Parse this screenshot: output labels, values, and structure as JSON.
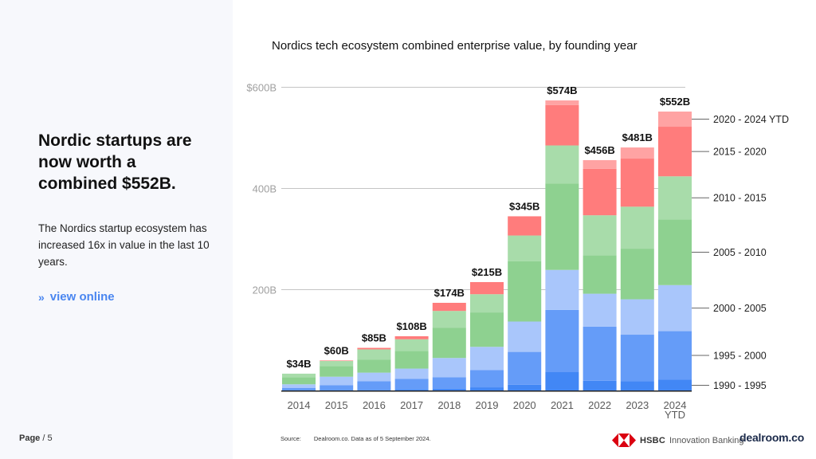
{
  "left_panel": {
    "headline": "Nordic startups are now worth a combined $552B.",
    "summary": "The Nordics startup ecosystem has increased 16x in value in the last 10 years.",
    "link_chevron": "»",
    "link_label": "view online"
  },
  "footer": {
    "page_label": "Page",
    "page_number": "/ 5",
    "source_label": "Source:",
    "source_text": "Dealroom.co. Data as of 5 September 2024.",
    "partner_brand": "HSBC",
    "partner_sub": "Innovation Banking",
    "logo_text": "dealroom.co"
  },
  "colors": {
    "background_left": "#f7f8fc",
    "link": "#4a86f0",
    "hsbc_red": "#db0011"
  },
  "chart_data": {
    "type": "bar",
    "stacked": true,
    "title": "Nordics tech ecosystem combined enterprise value, by founding year",
    "xlabel": "",
    "ylabel": "",
    "ylim": [
      0,
      600
    ],
    "grid": true,
    "legend_position": "right",
    "categories": [
      "2014",
      "2015",
      "2016",
      "2017",
      "2018",
      "2019",
      "2020",
      "2021",
      "2022",
      "2023",
      "2024 YTD"
    ],
    "y_ticks": [
      {
        "value": 200,
        "label": "200B"
      },
      {
        "value": 400,
        "label": "400B"
      },
      {
        "value": 600,
        "label": "$600B"
      }
    ],
    "totals": [
      34,
      60,
      85,
      108,
      174,
      215,
      345,
      574,
      456,
      481,
      552
    ],
    "data_labels": [
      "$34B",
      "$60B",
      "$85B",
      "$108B",
      "$174B",
      "$215B",
      "$345B",
      "$574B",
      "$456B",
      "$481B",
      "$552B"
    ],
    "series": [
      {
        "name": "1990 - 1995",
        "color": "#4287f5",
        "values": [
          2,
          2,
          2,
          3,
          4,
          7,
          12,
          37,
          20,
          19,
          22
        ]
      },
      {
        "name": "1995 - 2000",
        "color": "#659cf8",
        "values": [
          4,
          9,
          17,
          21,
          23,
          34,
          65,
          123,
          107,
          92,
          96
        ]
      },
      {
        "name": "2000 - 2005",
        "color": "#a9c6fb",
        "values": [
          7,
          17,
          17,
          20,
          38,
          46,
          60,
          79,
          65,
          70,
          91
        ]
      },
      {
        "name": "2005 - 2010",
        "color": "#8ed190",
        "values": [
          14,
          21,
          26,
          35,
          60,
          68,
          119,
          171,
          76,
          100,
          130
        ]
      },
      {
        "name": "2010 - 2015",
        "color": "#a8dcaa",
        "values": [
          7,
          10,
          20,
          23,
          33,
          36,
          51,
          75,
          79,
          83,
          85
        ]
      },
      {
        "name": "2015 - 2020",
        "color": "#ff7c7c",
        "values": [
          0,
          1,
          3,
          6,
          16,
          24,
          38,
          80,
          92,
          95,
          98
        ]
      },
      {
        "name": "2020 - 2024 YTD",
        "color": "#ffa3a3",
        "values": [
          0,
          0,
          0,
          0,
          0,
          0,
          0,
          9,
          17,
          22,
          30
        ]
      }
    ]
  }
}
